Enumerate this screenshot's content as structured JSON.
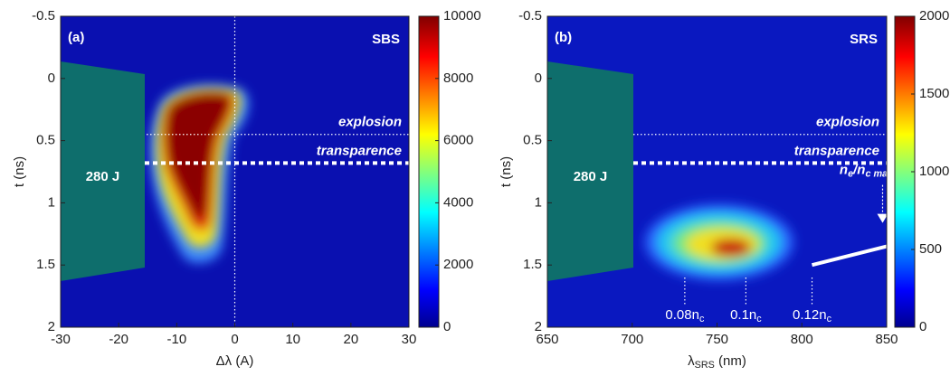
{
  "chart_data": [
    {
      "type": "heatmap",
      "panel_label": "(a)",
      "title": "SBS",
      "xlabel": [
        "Δλ (A)"
      ],
      "ylabel": "t (ns)",
      "xlim": [
        -30,
        30
      ],
      "xticks": [
        -30,
        -20,
        -10,
        0,
        10,
        20,
        30
      ],
      "ylim": [
        -0.5,
        2
      ],
      "yticks": [
        -0.5,
        0,
        0.5,
        1,
        1.5,
        2
      ],
      "y_reversed": true,
      "clim": [
        0,
        10000
      ],
      "cticks": [
        0,
        2000,
        4000,
        6000,
        8000,
        10000
      ],
      "crosshair_x": 0,
      "pulse_label": "280 J",
      "lines": [
        {
          "text": "explosion",
          "y": 0.45,
          "style": "thin"
        },
        {
          "text": "transparence",
          "y": 0.68,
          "style": "thick"
        }
      ]
    },
    {
      "type": "heatmap",
      "panel_label": "(b)",
      "title": "SRS",
      "xlabel": [
        "λ",
        "SRS",
        " (nm)"
      ],
      "ylabel": "t (ns)",
      "xlim": [
        650,
        850
      ],
      "xticks": [
        650,
        700,
        750,
        800,
        850
      ],
      "ylim": [
        -0.5,
        2
      ],
      "yticks": [
        -0.5,
        0,
        0.5,
        1,
        1.5,
        2
      ],
      "y_reversed": true,
      "clim": [
        0,
        2000
      ],
      "cticks": [
        0,
        500,
        1000,
        1500,
        2000
      ],
      "pulse_label": "280 J",
      "lines": [
        {
          "text": "explosion",
          "y": 0.45,
          "style": "thin"
        },
        {
          "text": "transparence",
          "y": 0.68,
          "style": "thick"
        }
      ],
      "markers": [
        {
          "text": [
            "0.08n",
            "c"
          ],
          "x": 731,
          "y": 1.6
        },
        {
          "text": [
            "0.1n",
            "c"
          ],
          "x": 767,
          "y": 1.6
        },
        {
          "text": [
            "0.12n",
            "c"
          ],
          "x": 806,
          "y": 1.6
        }
      ],
      "density_label": {
        "text": [
          "n",
          "e",
          "/n",
          "c max"
        ],
        "x": 838,
        "y": 0.9
      },
      "boundary": {
        "x": [
          806,
          850
        ],
        "y": [
          1.5,
          1.35
        ]
      }
    }
  ]
}
